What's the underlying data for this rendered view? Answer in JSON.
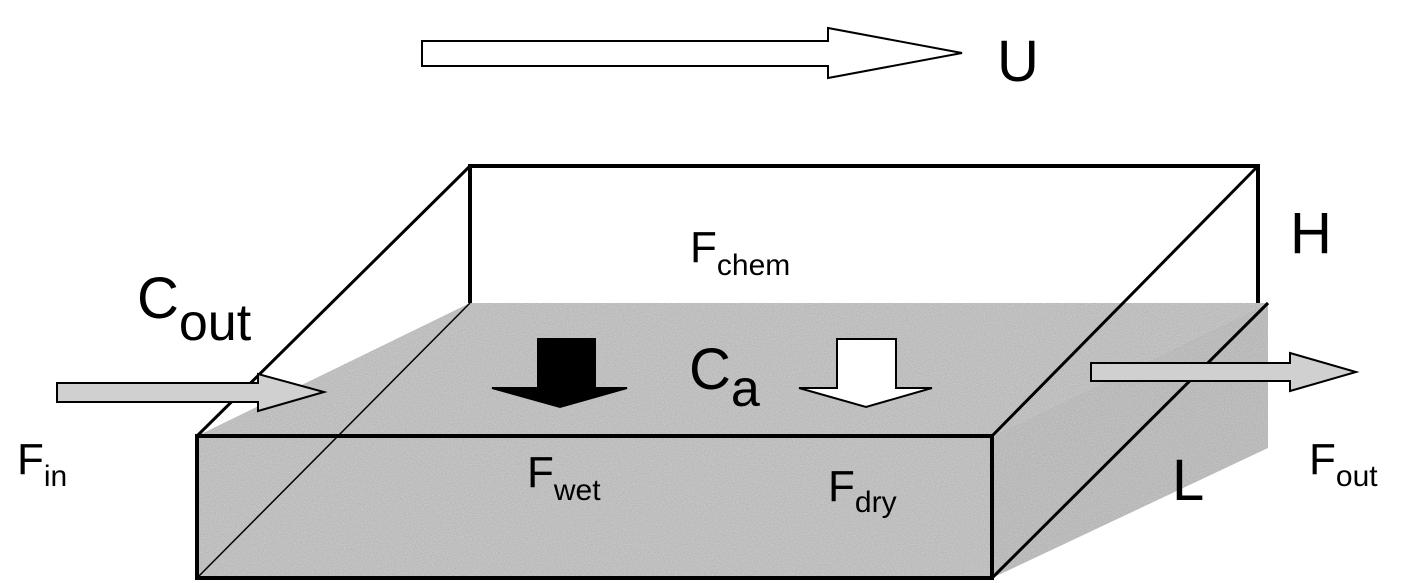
{
  "labels": {
    "velocity": "U",
    "height": "H",
    "length": "L",
    "c_out_main": "C",
    "c_out_sub": "out",
    "c_a_main": "C",
    "c_a_sub": "a",
    "f_chem_main": "F",
    "f_chem_sub": "chem",
    "f_in_main": "F",
    "f_in_sub": "in",
    "f_out_main": "F",
    "f_out_sub": "out",
    "f_wet_main": "F",
    "f_wet_sub": "wet",
    "f_dry_main": "F",
    "f_dry_sub": "dry"
  },
  "colors": {
    "ground_fill": "#d2d2d2",
    "flux_arrow_fill": "#d0d0d0",
    "wet_arrow_fill": "#000000",
    "dry_arrow_fill": "#ffffff",
    "line": "#000000"
  }
}
